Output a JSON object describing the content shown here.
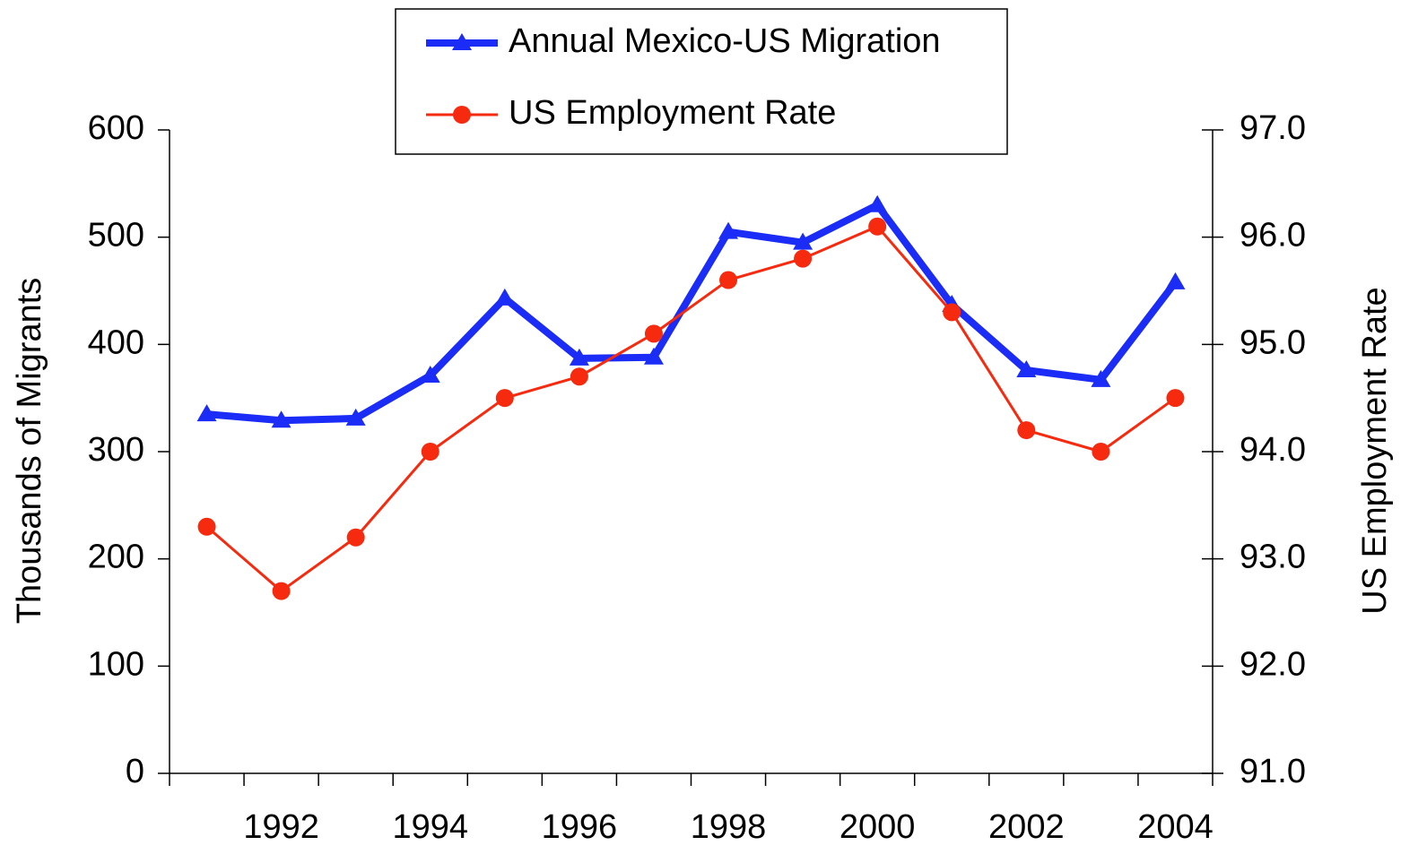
{
  "chart_data": {
    "type": "line",
    "categories": [
      null,
      "1992",
      null,
      "1994",
      null,
      "1996",
      null,
      "1998",
      null,
      "2000",
      null,
      "2002",
      null,
      "2004"
    ],
    "y_label": "Thousands of Migrants",
    "y2_label": "US Employment Rate",
    "ylim": [
      0,
      600
    ],
    "yticks": [
      0,
      100,
      200,
      300,
      400,
      500,
      600
    ],
    "y2lim": [
      91,
      97
    ],
    "y2ticks": [
      {
        "value": 91,
        "label": "91.0"
      },
      {
        "value": 92,
        "label": "92.0"
      },
      {
        "value": 93,
        "label": "93.0"
      },
      {
        "value": 94,
        "label": "94.0"
      },
      {
        "value": 95,
        "label": "95.0"
      },
      {
        "value": 96,
        "label": "96.0"
      },
      {
        "value": 97,
        "label": "97.0"
      }
    ],
    "legend": "top",
    "series": [
      {
        "name": "Annual Mexico-US Migration",
        "color": "#1a2cf5",
        "marker": "triangle",
        "values": [
          335,
          329,
          331,
          371,
          443,
          387,
          388,
          505,
          495,
          530,
          437,
          376,
          367,
          458
        ]
      },
      {
        "name": "US Employment Rate",
        "color": "#f52a0f",
        "marker": "circle",
        "axis": "y2",
        "values": [
          93.3,
          92.7,
          93.2,
          94.0,
          94.5,
          94.7,
          95.1,
          95.6,
          95.8,
          96.1,
          95.3,
          94.2,
          94.0,
          94.5
        ]
      }
    ]
  }
}
